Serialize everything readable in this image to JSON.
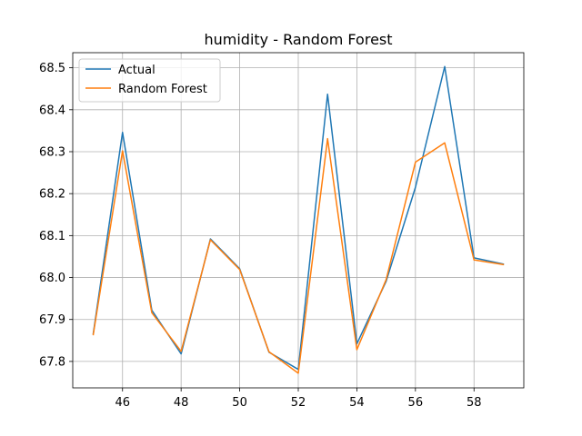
{
  "chart_data": {
    "type": "line",
    "title": "humidity - Random Forest",
    "xlabel": "",
    "ylabel": "",
    "x": [
      45,
      46,
      47,
      48,
      49,
      50,
      51,
      52,
      53,
      54,
      55,
      56,
      57,
      58,
      59
    ],
    "series": [
      {
        "name": "Actual",
        "color": "#1f77b4",
        "values": [
          67.866,
          68.346,
          67.922,
          67.818,
          68.092,
          68.021,
          67.822,
          67.781,
          68.437,
          67.842,
          67.991,
          68.215,
          68.503,
          68.047,
          68.032
        ]
      },
      {
        "name": "Random Forest",
        "color": "#ff7f0e",
        "values": [
          67.864,
          68.302,
          67.916,
          67.824,
          68.09,
          68.019,
          67.823,
          67.772,
          68.331,
          67.828,
          67.995,
          68.275,
          68.321,
          68.042,
          68.031
        ]
      }
    ],
    "xlim": [
      44.3,
      59.7
    ],
    "ylim": [
      67.737,
      68.536
    ],
    "xticks": [
      46,
      48,
      50,
      52,
      54,
      56,
      58
    ],
    "xtick_labels": [
      "46",
      "48",
      "50",
      "52",
      "54",
      "56",
      "58"
    ],
    "yticks": [
      67.8,
      67.9,
      68.0,
      68.1,
      68.2,
      68.3,
      68.4,
      68.5
    ],
    "ytick_labels": [
      "67.8",
      "67.9",
      "68.0",
      "68.1",
      "68.2",
      "68.3",
      "68.4",
      "68.5"
    ],
    "grid": true,
    "legend_position": "top-left"
  }
}
